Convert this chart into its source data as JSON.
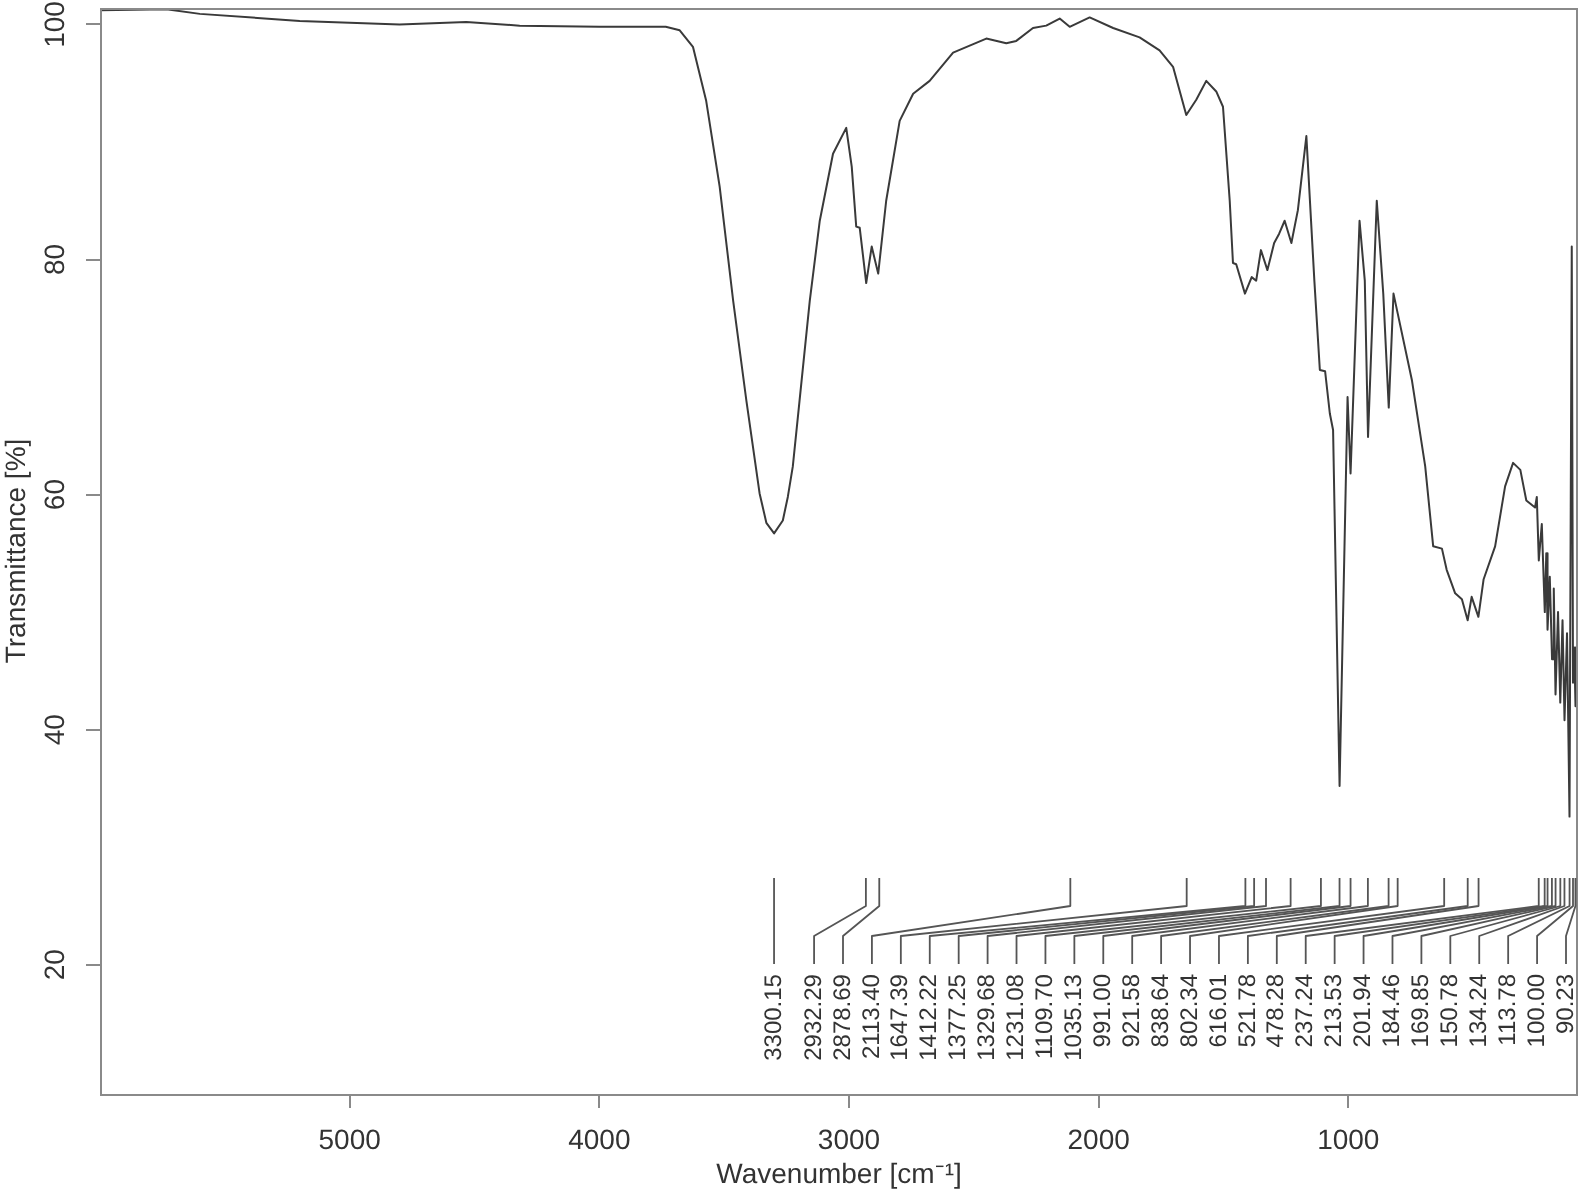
{
  "chart_data": {
    "type": "line",
    "xlabel": "Wavenumber [cm⁻¹]",
    "ylabel": "Transmittance [%]",
    "x": [
      6000,
      5734,
      5600,
      5200,
      4800,
      4533,
      4319,
      4000,
      3734,
      3678,
      3625,
      3572,
      3518,
      3464,
      3411,
      3358,
      3331,
      3300,
      3265,
      3245,
      3225,
      3198,
      3157,
      3117,
      3064,
      3011,
      2989,
      2971,
      2957,
      2931,
      2909,
      2883,
      2851,
      2797,
      2743,
      2677,
      2583,
      2450,
      2370,
      2330,
      2263,
      2210,
      2156,
      2116,
      2036,
      1942,
      1836,
      1756,
      1702,
      1649,
      1609,
      1569,
      1529,
      1502,
      1475,
      1462,
      1449,
      1414,
      1387,
      1369,
      1350,
      1324,
      1297,
      1277,
      1255,
      1228,
      1202,
      1168,
      1136,
      1114,
      1093,
      1074,
      1061,
      1035,
      1003,
      991,
      955,
      934,
      921,
      886,
      860,
      838,
      819,
      802,
      745,
      692,
      660,
      625,
      606,
      572,
      545,
      522,
      506,
      479,
      458,
      412,
      372,
      340,
      311,
      287,
      252,
      245,
      237,
      225,
      213,
      207,
      202,
      193,
      184,
      177,
      170,
      160,
      151,
      142,
      134,
      124,
      114,
      105,
      100,
      95,
      90
    ],
    "series": [
      {
        "color": "#3a3a3a",
        "values": [
          101.2,
          101.3,
          100.9,
          100.3,
          100.0,
          100.2,
          99.9,
          99.8,
          99.8,
          99.5,
          98.1,
          93.5,
          86.2,
          76.5,
          68.0,
          60.1,
          57.6,
          56.7,
          57.8,
          59.8,
          62.4,
          68.0,
          76.5,
          83.3,
          89.0,
          91.2,
          87.9,
          82.8,
          82.7,
          78.0,
          81.1,
          78.8,
          85.0,
          91.8,
          94.1,
          95.2,
          97.6,
          98.8,
          98.4,
          98.6,
          99.7,
          99.9,
          100.5,
          99.8,
          100.6,
          99.7,
          98.9,
          97.8,
          96.4,
          92.3,
          93.6,
          95.2,
          94.3,
          93.0,
          85.0,
          79.7,
          79.6,
          77.1,
          78.5,
          78.2,
          80.8,
          79.1,
          81.4,
          82.2,
          83.3,
          81.4,
          84.2,
          90.5,
          78.2,
          70.6,
          70.5,
          66.9,
          65.5,
          35.2,
          68.3,
          61.8,
          83.3,
          78.2,
          64.9,
          85.0,
          77.1,
          67.4,
          77.1,
          75.4,
          69.7,
          62.4,
          55.6,
          55.4,
          53.6,
          51.6,
          51.1,
          49.3,
          51.3,
          49.6,
          52.8,
          55.6,
          60.7,
          62.7,
          62.1,
          59.5,
          58.9,
          59.8,
          54.4,
          57.5,
          50.0,
          55.0,
          48.5,
          53.0,
          46.0,
          52.0,
          43.0,
          50.0,
          42.3,
          49.3,
          40.8,
          48.2,
          32.6,
          81.1,
          44.0,
          47.0,
          42.0
        ]
      }
    ],
    "xlim": [
      6000,
      80
    ],
    "ylim": [
      9,
      101.4
    ],
    "xticks": [
      5000,
      4000,
      3000,
      2000,
      1000
    ],
    "yticks": [
      20,
      40,
      60,
      80,
      100
    ],
    "marker": "none",
    "legend": false,
    "annotations": [
      {
        "text": "3300.15",
        "x": 3300.15
      },
      {
        "text": "2932.29",
        "x": 2932.29
      },
      {
        "text": "2878.69",
        "x": 2878.69
      },
      {
        "text": "2113.40",
        "x": 2113.4
      },
      {
        "text": "1647.39",
        "x": 1647.39
      },
      {
        "text": "1412.22",
        "x": 1412.22
      },
      {
        "text": "1377.25",
        "x": 1377.25
      },
      {
        "text": "1329.68",
        "x": 1329.68
      },
      {
        "text": "1231.08",
        "x": 1231.08
      },
      {
        "text": "1109.70",
        "x": 1109.7
      },
      {
        "text": "1035.13",
        "x": 1035.13
      },
      {
        "text": "991.00",
        "x": 991
      },
      {
        "text": "921.58",
        "x": 921.58
      },
      {
        "text": "838.64",
        "x": 838.64
      },
      {
        "text": "802.34",
        "x": 802.34
      },
      {
        "text": "616.01",
        "x": 616.01
      },
      {
        "text": "521.78",
        "x": 521.78
      },
      {
        "text": "478.28",
        "x": 478.28
      },
      {
        "text": "237.24",
        "x": 237.24
      },
      {
        "text": "213.53",
        "x": 213.53
      },
      {
        "text": "201.94",
        "x": 201.94
      },
      {
        "text": "184.46",
        "x": 184.46
      },
      {
        "text": "169.85",
        "x": 169.85
      },
      {
        "text": "150.78",
        "x": 150.78
      },
      {
        "text": "134.24",
        "x": 134.24
      },
      {
        "text": "113.78",
        "x": 113.78
      },
      {
        "text": "100.00",
        "x": 100
      },
      {
        "text": "90.23",
        "x": 90.23
      }
    ]
  }
}
